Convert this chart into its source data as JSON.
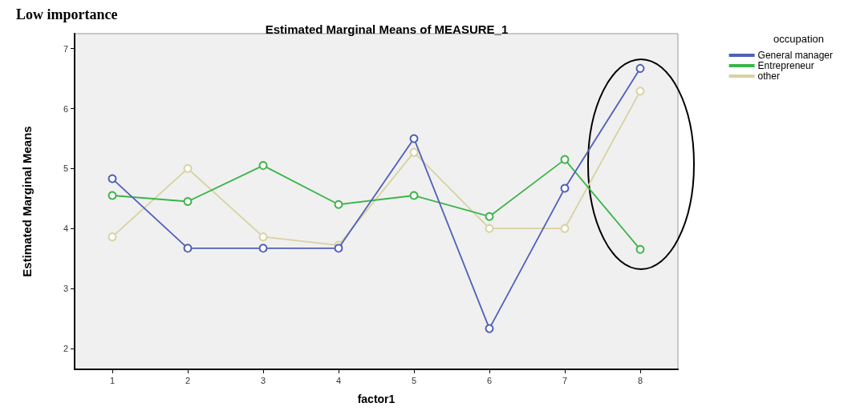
{
  "chart_data": {
    "type": "line",
    "title": "Estimated Marginal Means of MEASURE_1",
    "xlabel": "factor1",
    "ylabel": "Estimated Marginal Means",
    "legend_title": "occupation",
    "annotations": [
      "Low importance"
    ],
    "categories": [
      "1",
      "2",
      "3",
      "4",
      "5",
      "6",
      "7",
      "8"
    ],
    "series": [
      {
        "name": "General manager",
        "color": "#5060b8",
        "values": [
          4.83,
          3.67,
          3.67,
          3.67,
          5.5,
          2.33,
          4.67,
          6.67
        ]
      },
      {
        "name": "Entrepreneur",
        "color": "#3cb44a",
        "values": [
          4.55,
          4.45,
          5.05,
          4.4,
          4.55,
          4.2,
          5.15,
          3.65
        ]
      },
      {
        "name": "other",
        "color": "#d8d2a0",
        "values": [
          3.86,
          5.0,
          3.86,
          3.72,
          5.27,
          4.0,
          4.0,
          6.29
        ]
      }
    ],
    "ylim": [
      1.65,
      7.25
    ],
    "yticks": [
      2,
      3,
      4,
      5,
      6,
      7
    ],
    "grid": false,
    "legend": "top right",
    "marker": "circle",
    "line_style": "solid"
  }
}
